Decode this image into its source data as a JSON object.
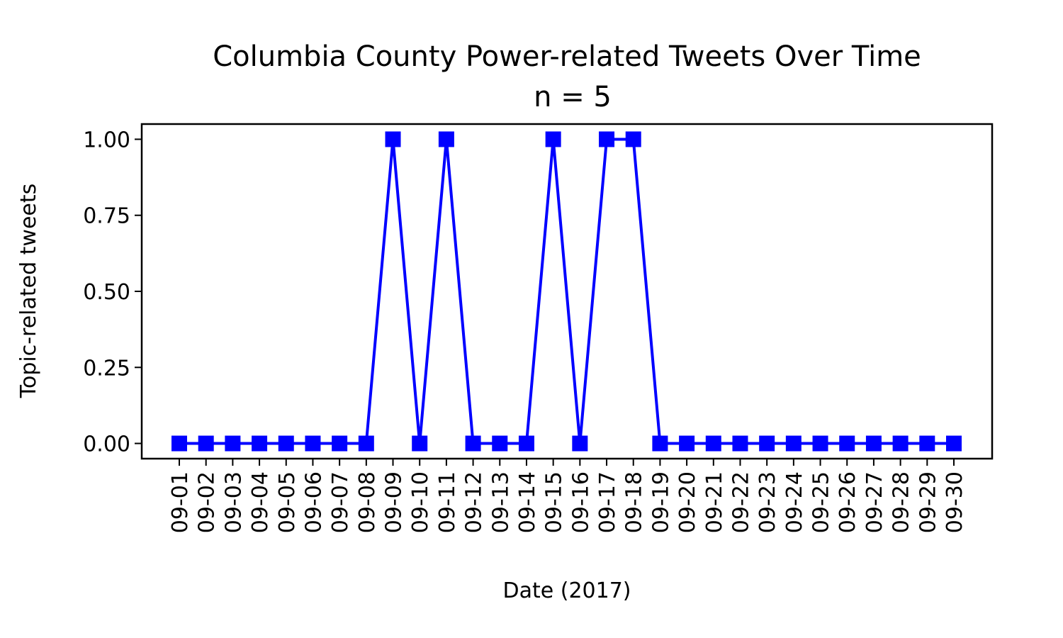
{
  "chart_data": {
    "type": "line",
    "title": "Columbia County Power-related Tweets Over Time",
    "subtitle": "n = 5",
    "xlabel": "Date (2017)",
    "ylabel": "Topic-related tweets",
    "categories": [
      "09-01",
      "09-02",
      "09-03",
      "09-04",
      "09-05",
      "09-06",
      "09-07",
      "09-08",
      "09-09",
      "09-10",
      "09-11",
      "09-12",
      "09-13",
      "09-14",
      "09-15",
      "09-16",
      "09-17",
      "09-18",
      "09-19",
      "09-20",
      "09-21",
      "09-22",
      "09-23",
      "09-24",
      "09-25",
      "09-26",
      "09-27",
      "09-28",
      "09-29",
      "09-30"
    ],
    "series": [
      {
        "values": [
          0,
          0,
          0,
          0,
          0,
          0,
          0,
          0,
          1,
          0,
          1,
          0,
          0,
          0,
          1,
          0,
          1,
          1,
          0,
          0,
          0,
          0,
          0,
          0,
          0,
          0,
          0,
          0,
          0,
          0
        ],
        "color": "#0000ff",
        "marker": "square"
      }
    ],
    "ylim": [
      -0.05,
      1.05
    ],
    "yticks": [
      "0.00",
      "0.25",
      "0.50",
      "0.75",
      "1.00"
    ],
    "grid": false,
    "legend": "none"
  }
}
